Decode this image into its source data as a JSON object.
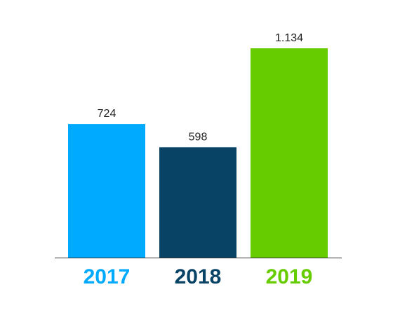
{
  "chart_data": {
    "type": "bar",
    "categories": [
      "2017",
      "2018",
      "2019"
    ],
    "values": [
      724,
      598,
      1134
    ],
    "value_labels": [
      "724",
      "598",
      "1.134"
    ],
    "colors": [
      "#00AAFF",
      "#084366",
      "#66CC00"
    ],
    "title": "",
    "xlabel": "",
    "ylabel": "",
    "ylim": [
      0,
      1134
    ],
    "grid": false,
    "legend": "none"
  }
}
